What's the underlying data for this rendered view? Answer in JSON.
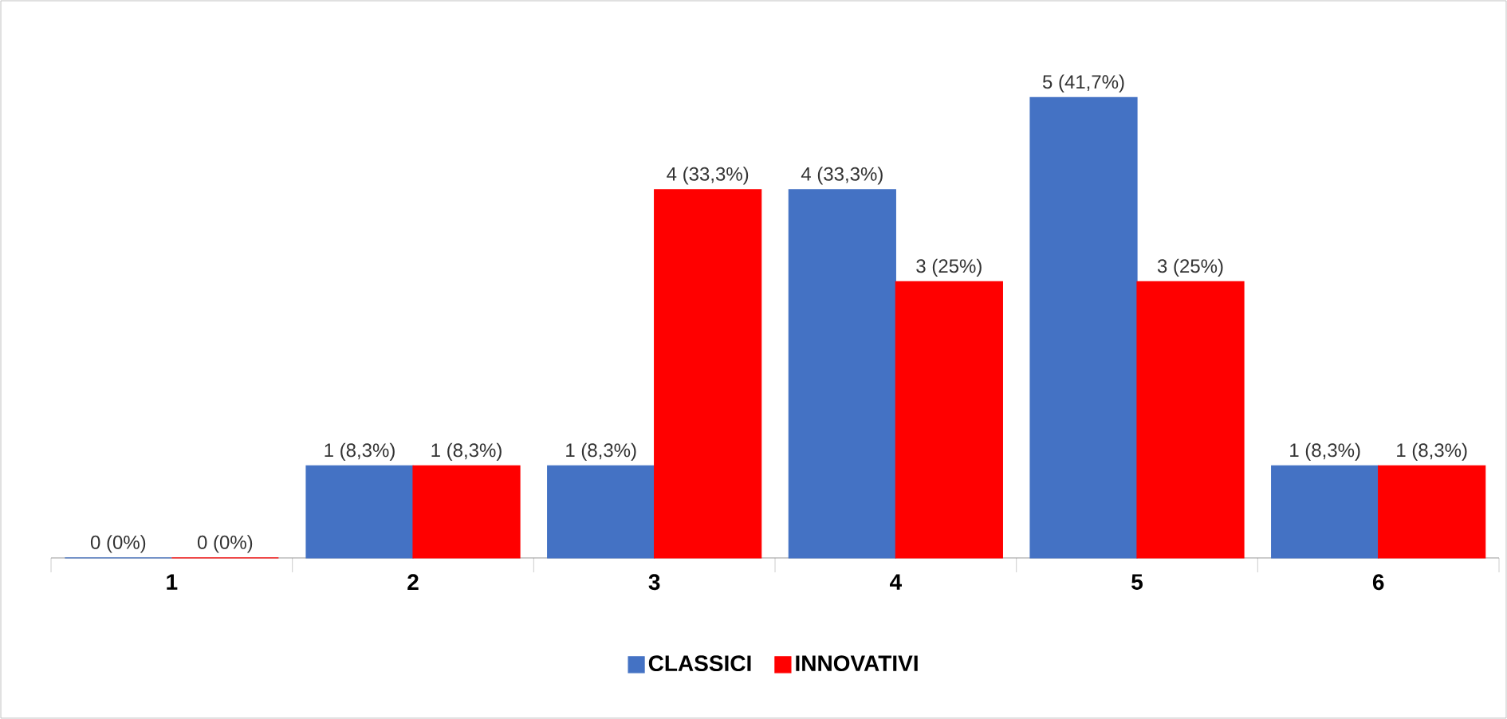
{
  "chart_data": {
    "type": "bar",
    "categories": [
      "1",
      "2",
      "3",
      "4",
      "5",
      "6"
    ],
    "series": [
      {
        "name": "CLASSICI",
        "color": "#4472c4",
        "values": [
          0,
          1,
          1,
          4,
          5,
          1
        ],
        "value_labels": [
          "0 (0%)",
          "1 (8,3%)",
          "1 (8,3%)",
          "4 (33,3%)",
          "5 (41,7%)",
          "1 (8,3%)"
        ]
      },
      {
        "name": "INNOVATIVI",
        "color": "#ff0000",
        "values": [
          0,
          1,
          4,
          3,
          3,
          1
        ],
        "value_labels": [
          "0 (0%)",
          "1 (8,3%)",
          "4 (33,3%)",
          "3 (25%)",
          "3 (25%)",
          "1 (8,3%)"
        ]
      }
    ],
    "grid": false,
    "legend": "bottom"
  }
}
